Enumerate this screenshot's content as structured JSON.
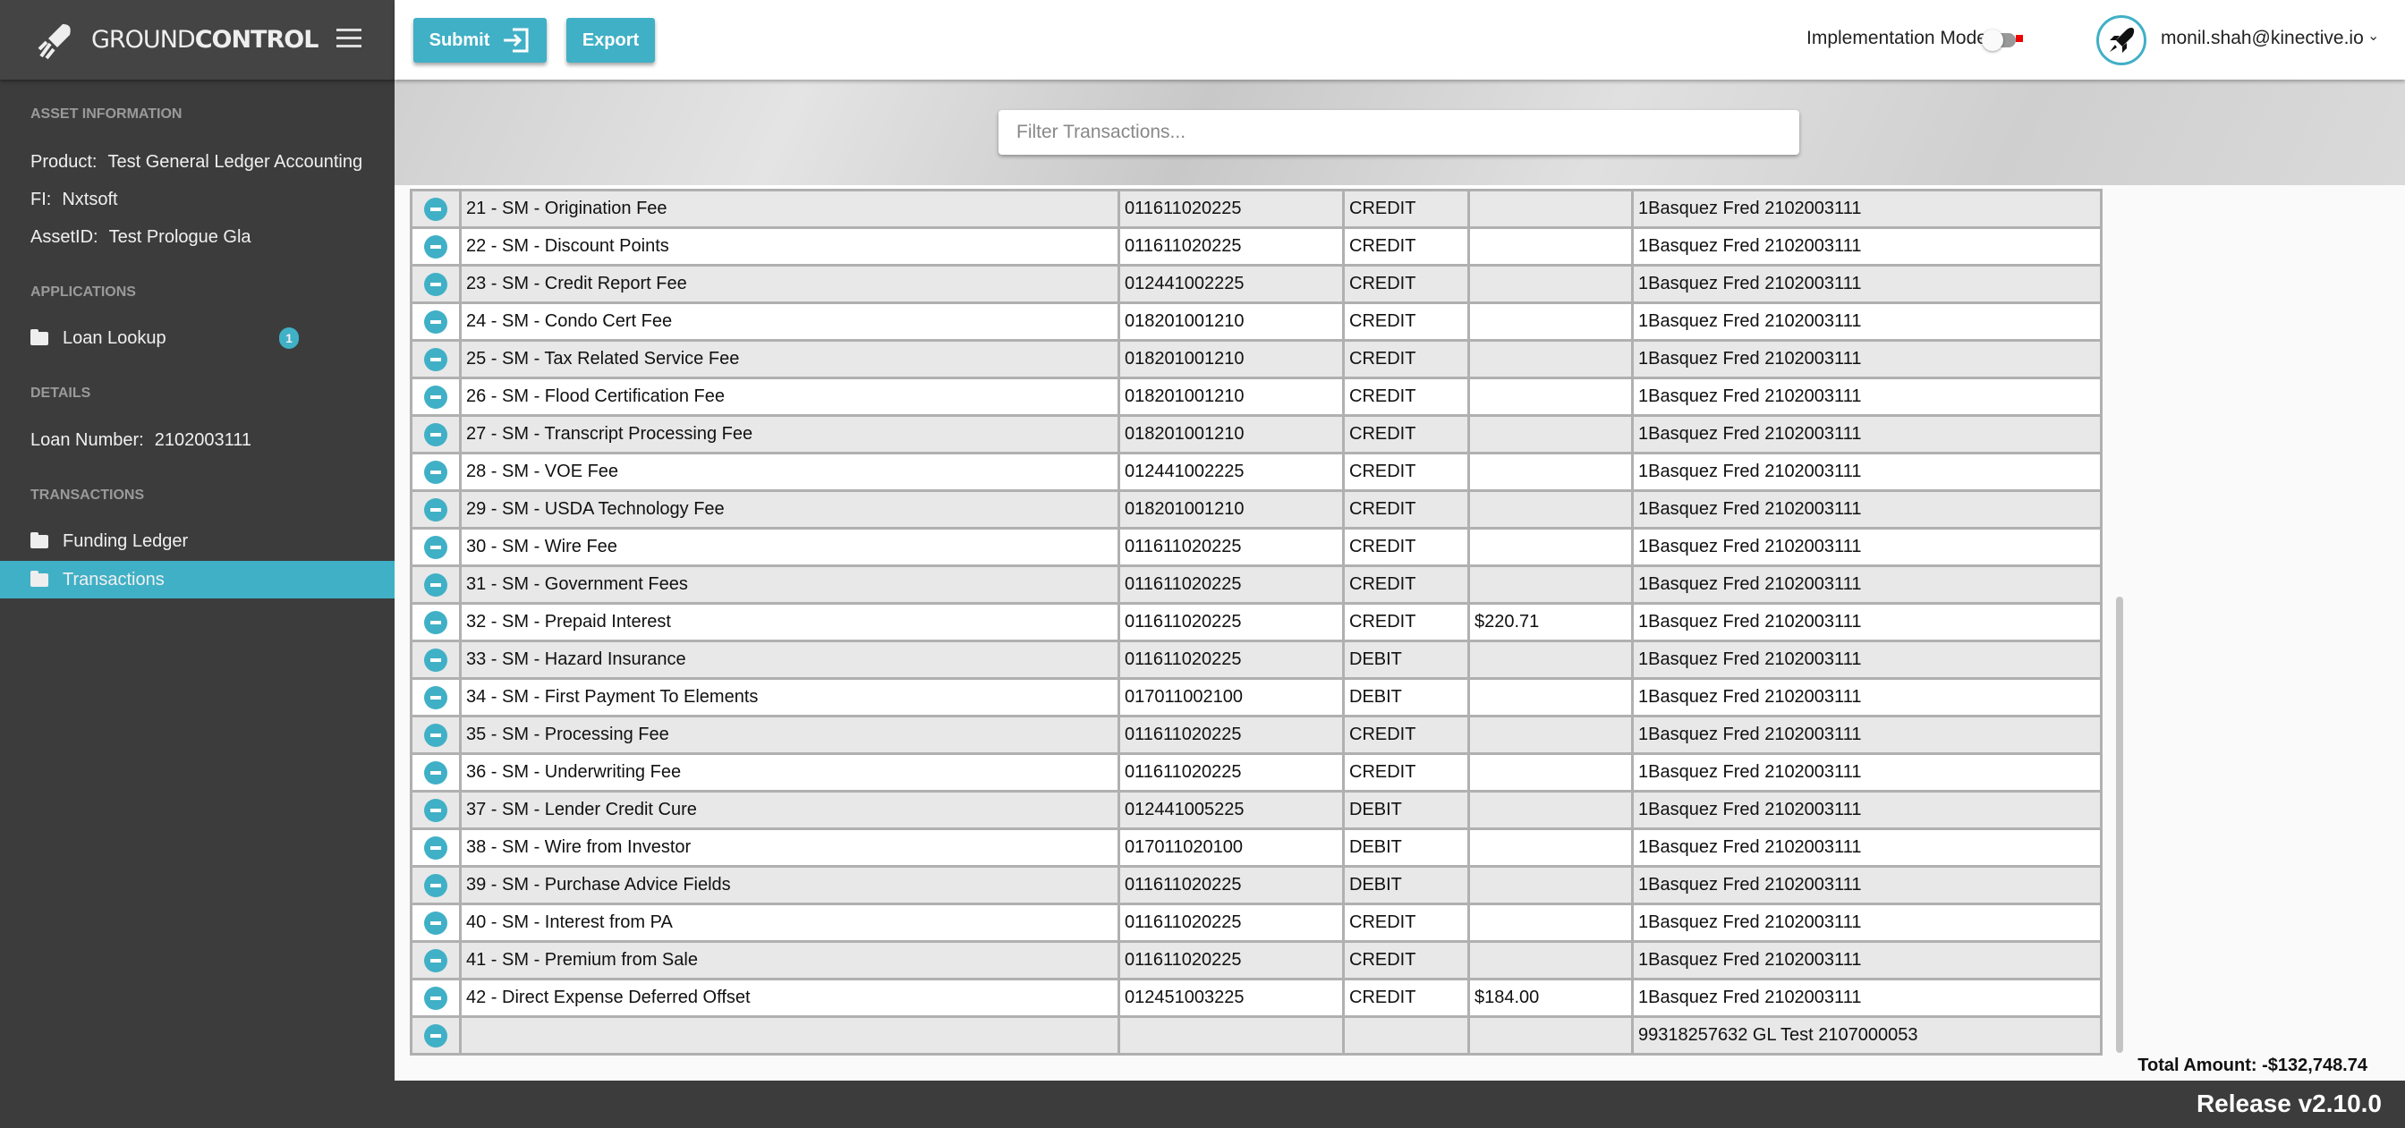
{
  "brand": {
    "name_light": "GROUND",
    "name_bold": "CONTROL"
  },
  "sidebar": {
    "asset_heading": "ASSET INFORMATION",
    "product_label": "Product:",
    "product_value": "Test General Ledger Accounting",
    "fi_label": "FI:",
    "fi_value": "Nxtsoft",
    "asset_label": "AssetID:",
    "asset_value": "Test Prologue Gla",
    "applications_heading": "APPLICATIONS",
    "loan_lookup": "Loan Lookup",
    "loan_lookup_badge": "1",
    "details_heading": "DETAILS",
    "loan_number_label": "Loan Number:",
    "loan_number_value": "2102003111",
    "transactions_heading": "TRANSACTIONS",
    "funding_ledger": "Funding Ledger",
    "transactions": "Transactions"
  },
  "toolbar": {
    "submit": "Submit",
    "export": "Export",
    "implementation_mode": "Implementation Mode",
    "implementation_mode_on": false,
    "user": "monil.shah@kinective.io"
  },
  "filter": {
    "placeholder": "Filter Transactions...",
    "value": ""
  },
  "rows": [
    [
      "21 - SM - Origination Fee",
      "011611020225",
      "CREDIT",
      "",
      "1Basquez Fred 2102003111"
    ],
    [
      "22 - SM - Discount Points",
      "011611020225",
      "CREDIT",
      "",
      "1Basquez Fred 2102003111"
    ],
    [
      "23 - SM - Credit Report Fee",
      "012441002225",
      "CREDIT",
      "",
      "1Basquez Fred 2102003111"
    ],
    [
      "24 - SM - Condo Cert Fee",
      "018201001210",
      "CREDIT",
      "",
      "1Basquez Fred 2102003111"
    ],
    [
      "25 - SM - Tax Related Service Fee",
      "018201001210",
      "CREDIT",
      "",
      "1Basquez Fred 2102003111"
    ],
    [
      "26 - SM - Flood Certification Fee",
      "018201001210",
      "CREDIT",
      "",
      "1Basquez Fred 2102003111"
    ],
    [
      "27 - SM - Transcript Processing Fee",
      "018201001210",
      "CREDIT",
      "",
      "1Basquez Fred 2102003111"
    ],
    [
      "28 - SM - VOE Fee",
      "012441002225",
      "CREDIT",
      "",
      "1Basquez Fred 2102003111"
    ],
    [
      "29 - SM - USDA Technology Fee",
      "018201001210",
      "CREDIT",
      "",
      "1Basquez Fred 2102003111"
    ],
    [
      "30 - SM - Wire Fee",
      "011611020225",
      "CREDIT",
      "",
      "1Basquez Fred 2102003111"
    ],
    [
      "31 - SM - Government Fees",
      "011611020225",
      "CREDIT",
      "",
      "1Basquez Fred 2102003111"
    ],
    [
      "32 - SM - Prepaid Interest",
      "011611020225",
      "CREDIT",
      "$220.71",
      "1Basquez Fred 2102003111"
    ],
    [
      "33 - SM - Hazard Insurance",
      "011611020225",
      "DEBIT",
      "",
      "1Basquez Fred 2102003111"
    ],
    [
      "34 - SM - First Payment To Elements",
      "017011002100",
      "DEBIT",
      "",
      "1Basquez Fred 2102003111"
    ],
    [
      "35 - SM - Processing Fee",
      "011611020225",
      "CREDIT",
      "",
      "1Basquez Fred 2102003111"
    ],
    [
      "36 - SM - Underwriting Fee",
      "011611020225",
      "CREDIT",
      "",
      "1Basquez Fred 2102003111"
    ],
    [
      "37 - SM - Lender Credit Cure",
      "012441005225",
      "DEBIT",
      "",
      "1Basquez Fred 2102003111"
    ],
    [
      "38 - SM - Wire from Investor",
      "017011020100",
      "DEBIT",
      "",
      "1Basquez Fred 2102003111"
    ],
    [
      "39 - SM - Purchase Advice Fields",
      "011611020225",
      "DEBIT",
      "",
      "1Basquez Fred 2102003111"
    ],
    [
      "40 - SM - Interest from PA",
      "011611020225",
      "CREDIT",
      "",
      "1Basquez Fred 2102003111"
    ],
    [
      "41 - SM - Premium from Sale",
      "011611020225",
      "CREDIT",
      "",
      "1Basquez Fred 2102003111"
    ],
    [
      "42 - Direct Expense Deferred Offset",
      "012451003225",
      "CREDIT",
      "$184.00",
      "1Basquez Fred 2102003111"
    ],
    [
      "",
      "",
      "",
      "",
      "99318257632 GL Test 2107000053"
    ]
  ],
  "total": "Total Amount: -$132,748.74",
  "footer": {
    "release": "Release v2.10.0"
  },
  "colors": {
    "accent": "#40b0c6",
    "sidebar": "#3c3c3c"
  }
}
